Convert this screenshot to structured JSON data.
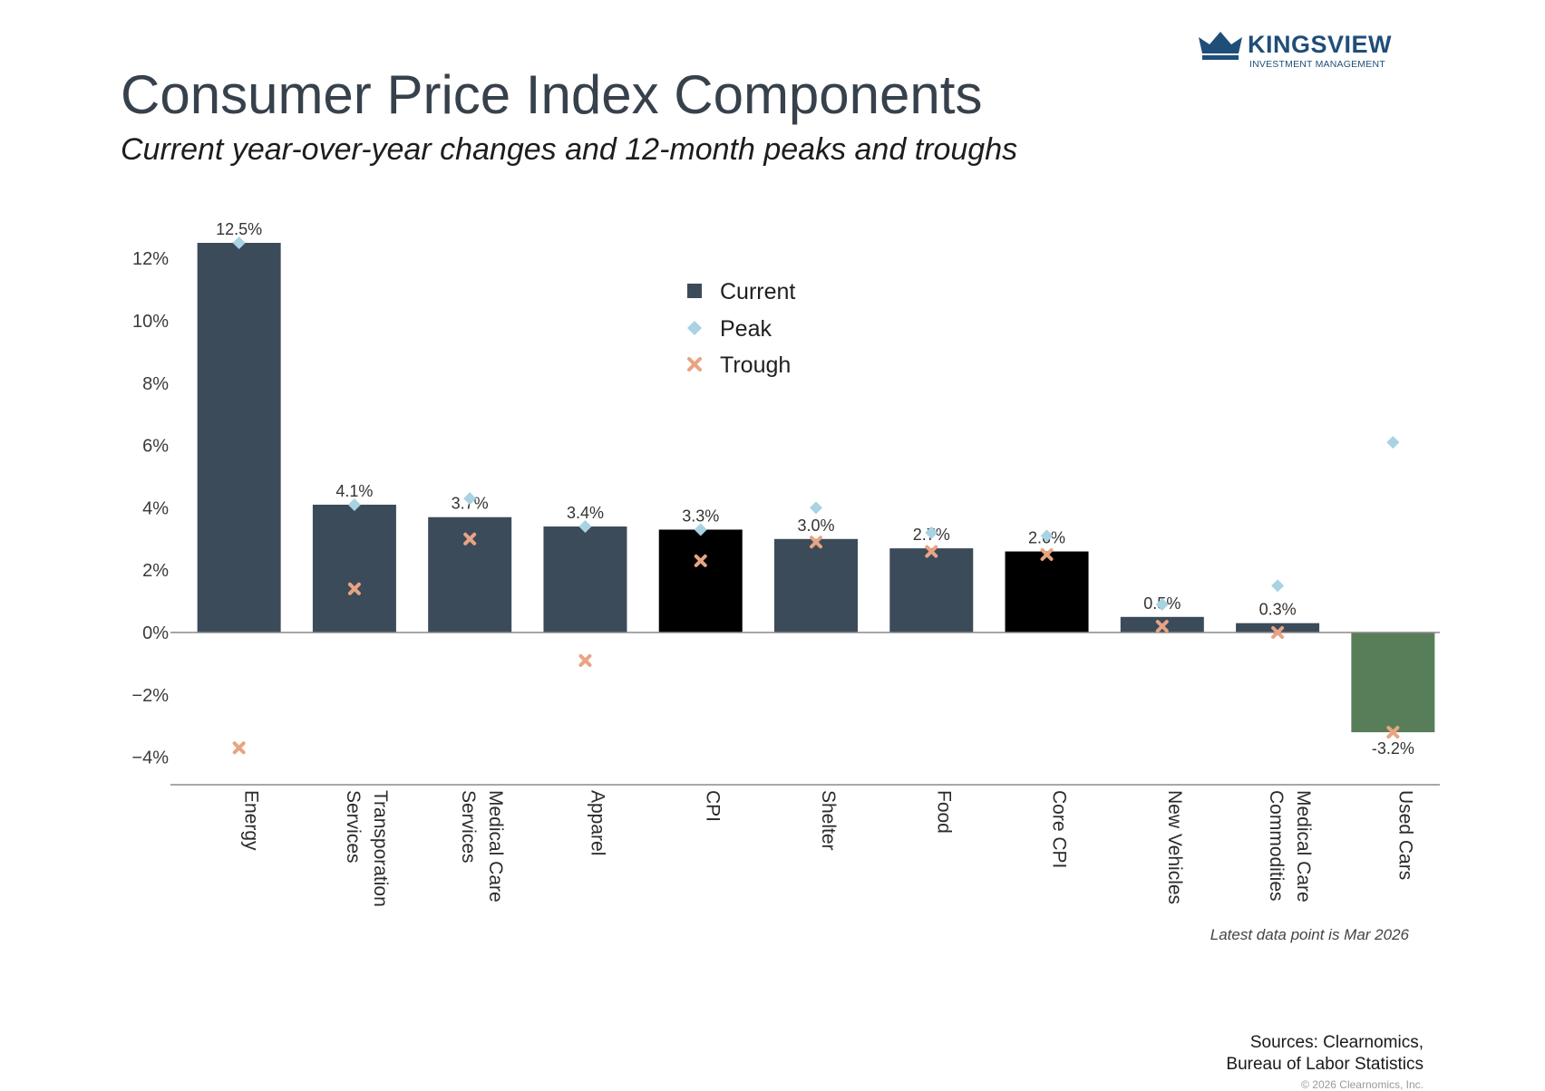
{
  "brand": {
    "name": "KINGSVIEW",
    "tagline": "INVESTMENT MANAGEMENT",
    "color": "#1f4e79"
  },
  "header": {
    "title": "Consumer Price Index Components",
    "subtitle": "Current year-over-year changes and 12-month peaks and troughs"
  },
  "chart_data": {
    "type": "bar",
    "title": "Consumer Price Index Components",
    "subtitle": "Current year-over-year changes and 12-month peaks and troughs",
    "categories": [
      "Energy",
      "Transporation Services",
      "Medical Care Services",
      "Apparel",
      "CPI",
      "Shelter",
      "Food",
      "Core CPI",
      "New Vehicles",
      "Medical Care Commodities",
      "Used Cars"
    ],
    "category_lines": [
      [
        "Energy"
      ],
      [
        "Transporation",
        "Services"
      ],
      [
        "Medical Care",
        "Services"
      ],
      [
        "Apparel"
      ],
      [
        "CPI"
      ],
      [
        "Shelter"
      ],
      [
        "Food"
      ],
      [
        "Core CPI"
      ],
      [
        "New Vehicles"
      ],
      [
        "Medical Care",
        "Commodities"
      ],
      [
        "Used Cars"
      ]
    ],
    "series": [
      {
        "name": "Current",
        "values": [
          12.5,
          4.1,
          3.7,
          3.4,
          3.3,
          3.0,
          2.7,
          2.6,
          0.5,
          0.3,
          -3.2
        ]
      },
      {
        "name": "Peak",
        "values": [
          12.5,
          4.1,
          4.3,
          3.4,
          3.3,
          4.0,
          3.2,
          3.1,
          0.9,
          1.5,
          6.1
        ]
      },
      {
        "name": "Trough",
        "values": [
          -3.7,
          1.4,
          3.0,
          -0.9,
          2.3,
          2.9,
          2.6,
          2.5,
          0.2,
          0.0,
          -3.2
        ]
      }
    ],
    "data_labels": [
      "12.5%",
      "4.1%",
      "3.7%",
      "3.4%",
      "3.3%",
      "3.0%",
      "2.7%",
      "2.6%",
      "0.5%",
      "0.3%",
      "-3.2%"
    ],
    "bar_colors": [
      "#3c4b5a",
      "#3c4b5a",
      "#3c4b5a",
      "#3c4b5a",
      "#000000",
      "#3c4b5a",
      "#3c4b5a",
      "#000000",
      "#3c4b5a",
      "#3c4b5a",
      "#587e59"
    ],
    "peak_color": "#a9d2e3",
    "trough_color": "#e8a483",
    "yticks": [
      12,
      10,
      8,
      6,
      4,
      2,
      0,
      -2,
      -4
    ],
    "ytick_labels": [
      "12%",
      "10%",
      "8%",
      "6%",
      "4%",
      "2%",
      "0%",
      "−2%",
      "−4%"
    ],
    "ylim": [
      -4.9,
      13.2
    ],
    "legend": {
      "items": [
        "Current",
        "Peak",
        "Trough"
      ],
      "placement": "top-center"
    },
    "grid": false
  },
  "footer": {
    "note": "Latest data point is Mar 2026",
    "sources_line1": "Sources: Clearnomics,",
    "sources_line2": "Bureau of Labor Statistics",
    "copyright": "© 2026 Clearnomics, Inc."
  }
}
